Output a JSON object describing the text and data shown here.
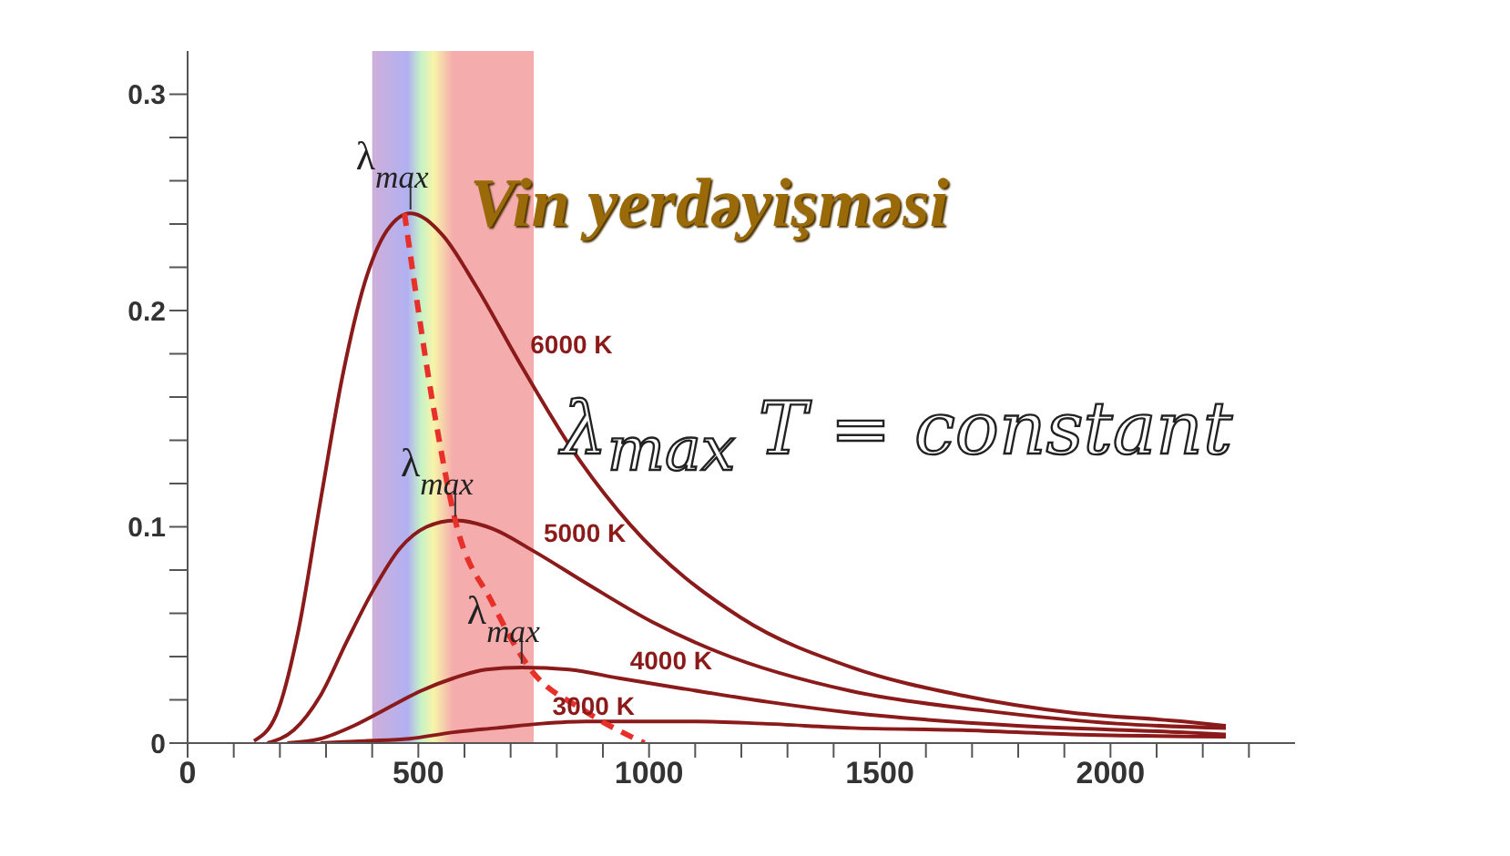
{
  "chart_data": {
    "type": "line",
    "title": "Vin yerdəyişməsi",
    "xlim": [
      0,
      2400
    ],
    "ylim": [
      0,
      0.32
    ],
    "xticks": [
      0,
      {
        "value": 100,
        "label": null
      },
      {
        "value": 200,
        "label": null
      },
      {
        "value": 300,
        "label": null
      },
      {
        "value": 400,
        "label": null
      },
      500,
      {
        "value": 600,
        "label": null
      },
      {
        "value": 700,
        "label": null
      },
      {
        "value": 800,
        "label": null
      },
      {
        "value": 900,
        "label": null
      },
      1000,
      {
        "value": 1100,
        "label": null
      },
      {
        "value": 1200,
        "label": null
      },
      {
        "value": 1300,
        "label": null
      },
      {
        "value": 1400,
        "label": null
      },
      1500,
      {
        "value": 1600,
        "label": null
      },
      {
        "value": 1700,
        "label": null
      },
      {
        "value": 1800,
        "label": null
      },
      {
        "value": 1900,
        "label": null
      },
      2000,
      {
        "value": 2100,
        "label": null
      },
      {
        "value": 2200,
        "label": null
      },
      {
        "value": 2300,
        "label": null
      }
    ],
    "yticks": [
      0,
      {
        "value": 0.02,
        "label": null
      },
      {
        "value": 0.04,
        "label": null
      },
      {
        "value": 0.06,
        "label": null
      },
      {
        "value": 0.08,
        "label": null
      },
      0.1,
      {
        "value": 0.12,
        "label": null
      },
      {
        "value": 0.14,
        "label": null
      },
      {
        "value": 0.16,
        "label": null
      },
      {
        "value": 0.18,
        "label": null
      },
      0.2,
      {
        "value": 0.22,
        "label": null
      },
      {
        "value": 0.24,
        "label": null
      },
      {
        "value": 0.26,
        "label": null
      },
      {
        "value": 0.28,
        "label": null
      },
      0.3
    ],
    "marker": "none",
    "line_style": "solid",
    "series": [
      {
        "name": "6000 K",
        "color": "#8b1a1a",
        "x": [
          144,
          192,
          240,
          288,
          336,
          384,
          432,
          483,
          552,
          623,
          719,
          839,
          959,
          1199,
          1439,
          1679,
          1918,
          2158,
          2250
        ],
        "values": [
          0.001,
          0.013,
          0.052,
          0.112,
          0.17,
          0.213,
          0.237,
          0.245,
          0.235,
          0.212,
          0.176,
          0.134,
          0.101,
          0.058,
          0.035,
          0.022,
          0.014,
          0.01,
          0.008
        ]
      },
      {
        "name": "5000 K",
        "color": "#8b1a1a",
        "x": [
          173,
          230,
          288,
          345,
          403,
          460,
          518,
          580,
          662,
          748,
          863,
          1007,
          1151,
          1439,
          1727,
          2014,
          2250
        ],
        "values": [
          0,
          0.006,
          0.022,
          0.047,
          0.071,
          0.09,
          0.1,
          0.103,
          0.099,
          0.089,
          0.074,
          0.056,
          0.042,
          0.024,
          0.015,
          0.009,
          0.007
        ]
      },
      {
        "name": "4000 K",
        "color": "#8b1a1a",
        "x": [
          216,
          288,
          360,
          432,
          504,
          576,
          647,
          724,
          827,
          935,
          1079,
          1259,
          1439,
          1799,
          2158,
          2250
        ],
        "values": [
          0,
          0.002,
          0.008,
          0.016,
          0.024,
          0.03,
          0.034,
          0.035,
          0.034,
          0.03,
          0.025,
          0.019,
          0.014,
          0.008,
          0.005,
          0.004
        ]
      },
      {
        "name": "3000 K",
        "color": "#8b1a1a",
        "x": [
          288,
          384,
          480,
          576,
          671,
          767,
          863,
          966,
          1103,
          1247,
          1439,
          1679,
          1918,
          2250
        ],
        "values": [
          0,
          0.001,
          0.002,
          0.005,
          0.007,
          0.009,
          0.01,
          0.01,
          0.01,
          0.009,
          0.007,
          0.006,
          0.004,
          0.003
        ]
      },
      {
        "color": "#e8302a",
        "line_style": "dashed",
        "x": [
          470,
          537,
          580,
          660,
          740,
          860,
          990
        ],
        "values": [
          0.245,
          0.15,
          0.103,
          0.065,
          0.035,
          0.015,
          0
        ]
      }
    ],
    "bands": [
      {
        "axis": "x",
        "from": 400,
        "to": 750,
        "color": "#f4a3a3"
      }
    ],
    "annotations": [
      {
        "text": "λ$_{max}$",
        "x": 483,
        "y": 0.245
      },
      {
        "text": "λ$_{max}$",
        "x": 580,
        "y": 0.103
      },
      {
        "text": "λ$_{max}$",
        "x": 724,
        "y": 0.035
      },
      "λ$_{max}$ T = constant"
    ]
  }
}
